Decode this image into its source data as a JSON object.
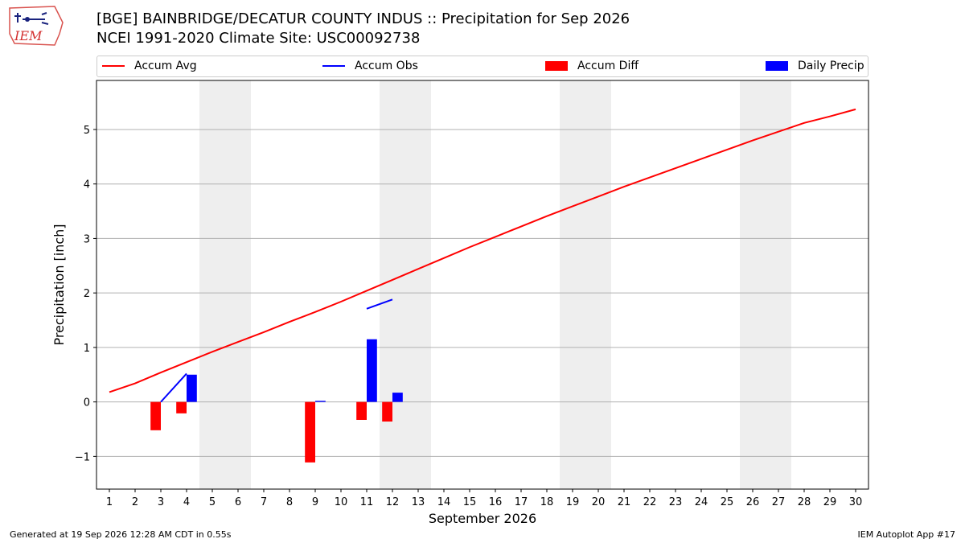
{
  "logo": {
    "text": "IEM"
  },
  "title": {
    "line1": "[BGE] BAINBRIDGE/DECATUR COUNTY INDUS :: Precipitation for Sep 2026",
    "line2": "NCEI 1991-2020 Climate Site: USC00092738"
  },
  "legend": {
    "placement": "top",
    "items": [
      {
        "label": "Accum Avg",
        "color": "#ff0000",
        "kind": "line"
      },
      {
        "label": "Accum Obs",
        "color": "#0000ff",
        "kind": "line"
      },
      {
        "label": "Accum Diff",
        "color": "#ff0000",
        "kind": "bar"
      },
      {
        "label": "Daily Precip",
        "color": "#0000ff",
        "kind": "bar"
      }
    ]
  },
  "footer": {
    "left": "Generated at 19 Sep 2026 12:28 AM CDT in 0.55s",
    "right": "IEM Autoplot App #17"
  },
  "chart_data": {
    "type": "bar",
    "xlabel": "September 2026",
    "ylabel": "Precipitation [inch]",
    "xlim": [
      0.5,
      30.5
    ],
    "ylim": [
      -1.6,
      5.9
    ],
    "yticks": [
      -1,
      0,
      1,
      2,
      3,
      4,
      5
    ],
    "ytick_labels": [
      "−1",
      "0",
      "1",
      "2",
      "3",
      "4",
      "5"
    ],
    "xticks": [
      1,
      2,
      3,
      4,
      5,
      6,
      7,
      8,
      9,
      10,
      11,
      12,
      13,
      14,
      15,
      16,
      17,
      18,
      19,
      20,
      21,
      22,
      23,
      24,
      25,
      26,
      27,
      28,
      29,
      30
    ],
    "grid": "horizontal",
    "weekend_shading": [
      [
        5,
        6
      ],
      [
        12,
        13
      ],
      [
        19,
        20
      ],
      [
        26,
        27
      ]
    ],
    "shading_color": "#eeeeee",
    "series": [
      {
        "name": "Accum Avg",
        "type": "line",
        "color": "#ff0000",
        "x": [
          1,
          2,
          3,
          4,
          5,
          6,
          7,
          8,
          9,
          10,
          11,
          12,
          13,
          14,
          15,
          16,
          17,
          18,
          19,
          20,
          21,
          22,
          23,
          24,
          25,
          26,
          27,
          28,
          29,
          30
        ],
        "values": [
          0.18,
          0.34,
          0.54,
          0.73,
          0.92,
          1.1,
          1.28,
          1.47,
          1.65,
          1.84,
          2.04,
          2.24,
          2.44,
          2.64,
          2.84,
          3.03,
          3.22,
          3.41,
          3.59,
          3.77,
          3.95,
          4.12,
          4.29,
          4.46,
          4.63,
          4.8,
          4.96,
          5.12,
          5.24,
          5.37
        ]
      },
      {
        "name": "Accum Obs",
        "type": "line",
        "color": "#0000ff",
        "segments": [
          {
            "x": [
              3,
              4
            ],
            "values": [
              0.0,
              0.52
            ]
          },
          {
            "x": [
              11,
              12
            ],
            "values": [
              1.71,
              1.88
            ]
          }
        ]
      },
      {
        "name": "Accum Diff",
        "type": "bar",
        "color": "#ff0000",
        "offset": -0.2,
        "x": [
          3,
          4,
          9,
          11,
          12
        ],
        "values": [
          -0.52,
          -0.21,
          -1.11,
          -0.33,
          -0.36
        ]
      },
      {
        "name": "Daily Precip",
        "type": "bar",
        "color": "#0000ff",
        "offset": 0.2,
        "x": [
          4,
          9,
          11,
          12
        ],
        "values": [
          0.5,
          0.02,
          1.15,
          0.17
        ]
      }
    ]
  }
}
